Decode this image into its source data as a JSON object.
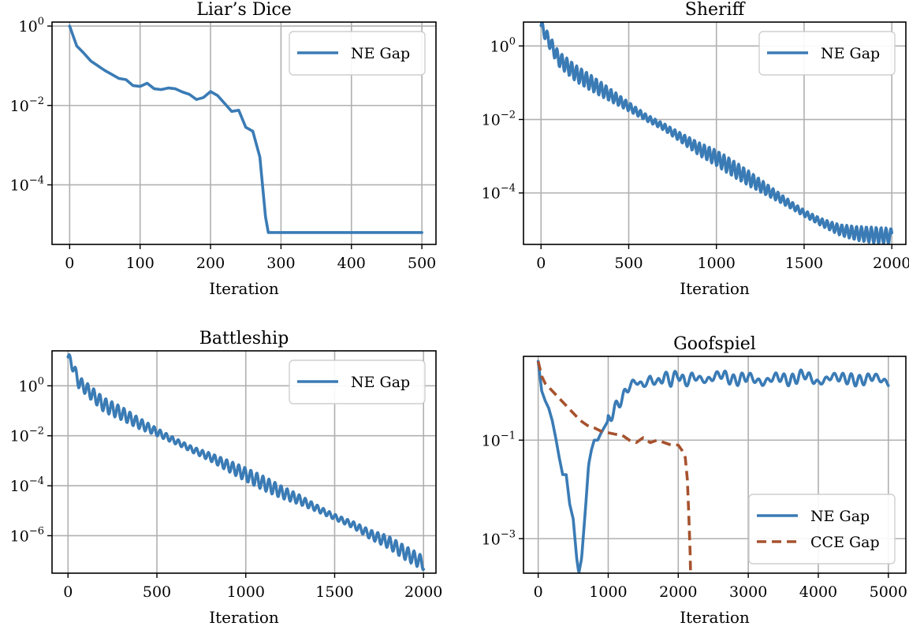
{
  "chart_data": [
    {
      "type": "line",
      "title": "Liar’s Dice",
      "xlabel": "Iteration",
      "xlim": [
        -25,
        520
      ],
      "ylim_log10": [
        -5.5,
        0.1
      ],
      "xticks": [
        0,
        100,
        200,
        300,
        400,
        500
      ],
      "yticks_exp": [
        0,
        -2,
        -4
      ],
      "ytick_labels": [
        {
          "base": "10",
          "exp": "0"
        },
        {
          "base": "10",
          "exp": "−2"
        },
        {
          "base": "10",
          "exp": "−4"
        }
      ],
      "xtick_labels": [
        "0",
        "100",
        "200",
        "300",
        "400",
        "500"
      ],
      "legend": {
        "position": "top-right",
        "entries": [
          "NE Gap"
        ]
      },
      "series": [
        {
          "name": "NE Gap",
          "color": "#3a7bb5",
          "dash": "solid",
          "x": [
            0,
            10,
            20,
            30,
            40,
            50,
            60,
            70,
            80,
            90,
            100,
            110,
            120,
            130,
            140,
            150,
            160,
            170,
            180,
            190,
            200,
            210,
            220,
            230,
            240,
            250,
            260,
            270,
            278,
            282,
            300,
            400,
            500
          ],
          "log10_y": [
            0,
            -0.5,
            -0.68,
            -0.88,
            -1.0,
            -1.12,
            -1.22,
            -1.32,
            -1.35,
            -1.5,
            -1.52,
            -1.44,
            -1.58,
            -1.6,
            -1.56,
            -1.58,
            -1.66,
            -1.72,
            -1.85,
            -1.8,
            -1.65,
            -1.75,
            -1.95,
            -2.15,
            -2.12,
            -2.55,
            -2.65,
            -3.3,
            -4.8,
            -5.2,
            -5.2,
            -5.2,
            -5.2
          ]
        }
      ]
    },
    {
      "type": "line",
      "title": "Sheriff",
      "xlabel": "Iteration",
      "xlim": [
        -100,
        2080
      ],
      "ylim_log10": [
        -5.4,
        0.65
      ],
      "xticks": [
        0,
        500,
        1000,
        1500,
        2000
      ],
      "yticks_exp": [
        0,
        -2,
        -4
      ],
      "ytick_labels": [
        {
          "base": "10",
          "exp": "0"
        },
        {
          "base": "10",
          "exp": "−2"
        },
        {
          "base": "10",
          "exp": "−4"
        }
      ],
      "xtick_labels": [
        "0",
        "500",
        "1000",
        "1500",
        "2000"
      ],
      "legend": {
        "position": "top-right",
        "entries": [
          "NE Gap"
        ]
      },
      "series": [
        {
          "name": "NE Gap",
          "color": "#3a7bb5",
          "dash": "solid",
          "x": [
            0,
            100,
            200,
            300,
            400,
            500,
            600,
            700,
            800,
            900,
            1000,
            1100,
            1200,
            1300,
            1400,
            1500,
            1600,
            1700,
            1800,
            1900,
            2000
          ],
          "log10_y": [
            0.55,
            -0.35,
            -0.75,
            -1.05,
            -1.35,
            -1.65,
            -1.95,
            -2.2,
            -2.5,
            -2.8,
            -3.05,
            -3.35,
            -3.65,
            -3.95,
            -4.25,
            -4.55,
            -4.8,
            -5.0,
            -5.1,
            -5.15,
            -5.18
          ],
          "wobble": 0.22,
          "period": 28
        }
      ]
    },
    {
      "type": "line",
      "title": "Battleship",
      "xlabel": "Iteration",
      "xlim": [
        -90,
        2070
      ],
      "ylim_log10": [
        -7.5,
        1.4
      ],
      "xticks": [
        0,
        500,
        1000,
        1500,
        2000
      ],
      "yticks_exp": [
        0,
        -2,
        -4,
        -6
      ],
      "ytick_labels": [
        {
          "base": "10",
          "exp": "0"
        },
        {
          "base": "10",
          "exp": "−2"
        },
        {
          "base": "10",
          "exp": "−4"
        },
        {
          "base": "10",
          "exp": "−6"
        }
      ],
      "xtick_labels": [
        "0",
        "500",
        "1000",
        "1500",
        "2000"
      ],
      "legend": {
        "position": "top-right",
        "entries": [
          "NE Gap"
        ]
      },
      "series": [
        {
          "name": "NE Gap",
          "color": "#3a7bb5",
          "dash": "solid",
          "x": [
            0,
            30,
            60,
            100,
            200,
            300,
            400,
            500,
            600,
            700,
            800,
            900,
            1000,
            1100,
            1200,
            1300,
            1400,
            1500,
            1600,
            1700,
            1800,
            1900,
            2000
          ],
          "log10_y": [
            1.15,
            0.75,
            0.15,
            -0.1,
            -0.75,
            -1.1,
            -1.5,
            -1.85,
            -2.2,
            -2.55,
            -2.85,
            -3.2,
            -3.55,
            -3.9,
            -4.25,
            -4.55,
            -4.9,
            -5.25,
            -5.55,
            -5.95,
            -6.25,
            -6.7,
            -7.1
          ],
          "wobble": 0.28,
          "period": 34
        }
      ]
    },
    {
      "type": "line",
      "title": "Goofspiel",
      "xlabel": "Iteration",
      "xlim": [
        -210,
        5250
      ],
      "ylim_log10": [
        -3.7,
        0.7
      ],
      "xticks": [
        0,
        1000,
        2000,
        3000,
        4000,
        5000
      ],
      "yticks_exp": [
        -1,
        -3
      ],
      "ytick_labels": [
        {
          "base": "10",
          "exp": "−1"
        },
        {
          "base": "10",
          "exp": "−3"
        }
      ],
      "xtick_labels": [
        "0",
        "1000",
        "2000",
        "3000",
        "4000",
        "5000"
      ],
      "legend": {
        "position": "bottom-right",
        "entries": [
          "NE Gap",
          "CCE Gap"
        ]
      },
      "series": [
        {
          "name": "NE Gap",
          "color": "#3a7bb5",
          "dash": "solid",
          "x": [
            0,
            50,
            100,
            150,
            200,
            250,
            300,
            350,
            400,
            450,
            500,
            550,
            580,
            620,
            680,
            720,
            760,
            800,
            850,
            900,
            1000,
            1100,
            1200,
            1300,
            1400,
            1500,
            1600,
            1700,
            1800,
            1900,
            2000,
            2100,
            2200,
            2400,
            2600,
            2800,
            3000,
            3200,
            3400,
            3600,
            3800,
            4000,
            4200,
            4400,
            4600,
            4800,
            5000
          ],
          "log10_y": [
            0.6,
            0.0,
            -0.2,
            -0.35,
            -0.6,
            -0.95,
            -1.35,
            -1.7,
            -1.7,
            -2.3,
            -2.6,
            -3.4,
            -3.7,
            -3.4,
            -2.3,
            -1.5,
            -1.2,
            -1.0,
            -1.0,
            -0.85,
            -0.6,
            -0.35,
            -0.15,
            0.1,
            0.2,
            0.1,
            0.25,
            0.15,
            0.3,
            0.2,
            0.35,
            0.15,
            0.3,
            0.2,
            0.35,
            0.2,
            0.3,
            0.15,
            0.3,
            0.2,
            0.35,
            0.15,
            0.3,
            0.25,
            0.2,
            0.3,
            0.15
          ],
          "wobble": 0.12,
          "period": 120,
          "wobble_start": 1000
        },
        {
          "name": "CCE Gap",
          "color": "#a6522e",
          "dash": "dashed",
          "x": [
            0,
            50,
            100,
            200,
            300,
            400,
            500,
            600,
            700,
            800,
            900,
            1000,
            1100,
            1200,
            1300,
            1400,
            1500,
            1600,
            1700,
            1800,
            1900,
            2000,
            2050,
            2100,
            2130,
            2150,
            2170,
            2180
          ],
          "log10_y": [
            0.6,
            0.3,
            0.15,
            0.0,
            -0.15,
            -0.3,
            -0.45,
            -0.6,
            -0.7,
            -0.75,
            -0.82,
            -0.85,
            -0.88,
            -0.9,
            -1.0,
            -1.05,
            -0.95,
            -1.05,
            -1.0,
            -1.05,
            -1.1,
            -1.1,
            -1.2,
            -1.35,
            -1.8,
            -2.5,
            -3.3,
            -4.0
          ]
        }
      ]
    }
  ]
}
